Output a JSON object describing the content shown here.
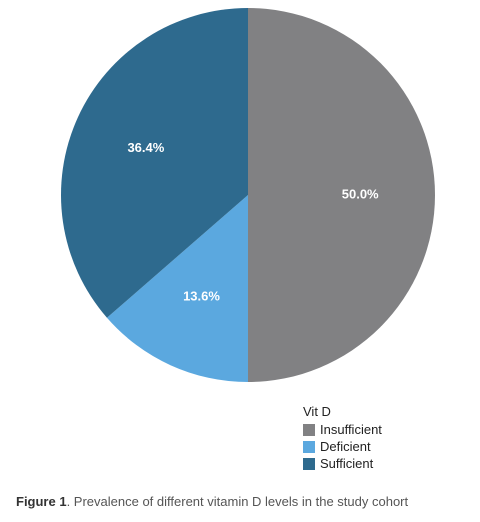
{
  "chart_data": {
    "type": "pie",
    "categories": [
      "Insufficient",
      "Deficient",
      "Sufficient"
    ],
    "values": [
      50.0,
      13.6,
      36.4
    ],
    "labels": [
      "50.0%",
      "13.6%",
      "36.4%"
    ],
    "colors": [
      "#818183",
      "#5ba8df",
      "#2e6a8e"
    ],
    "legend_title": "Vit D",
    "legend_position": "bottom-right"
  },
  "caption": {
    "figure_label": "Figure 1",
    "text": ". Prevalence of different vitamin D levels in the study cohort"
  }
}
